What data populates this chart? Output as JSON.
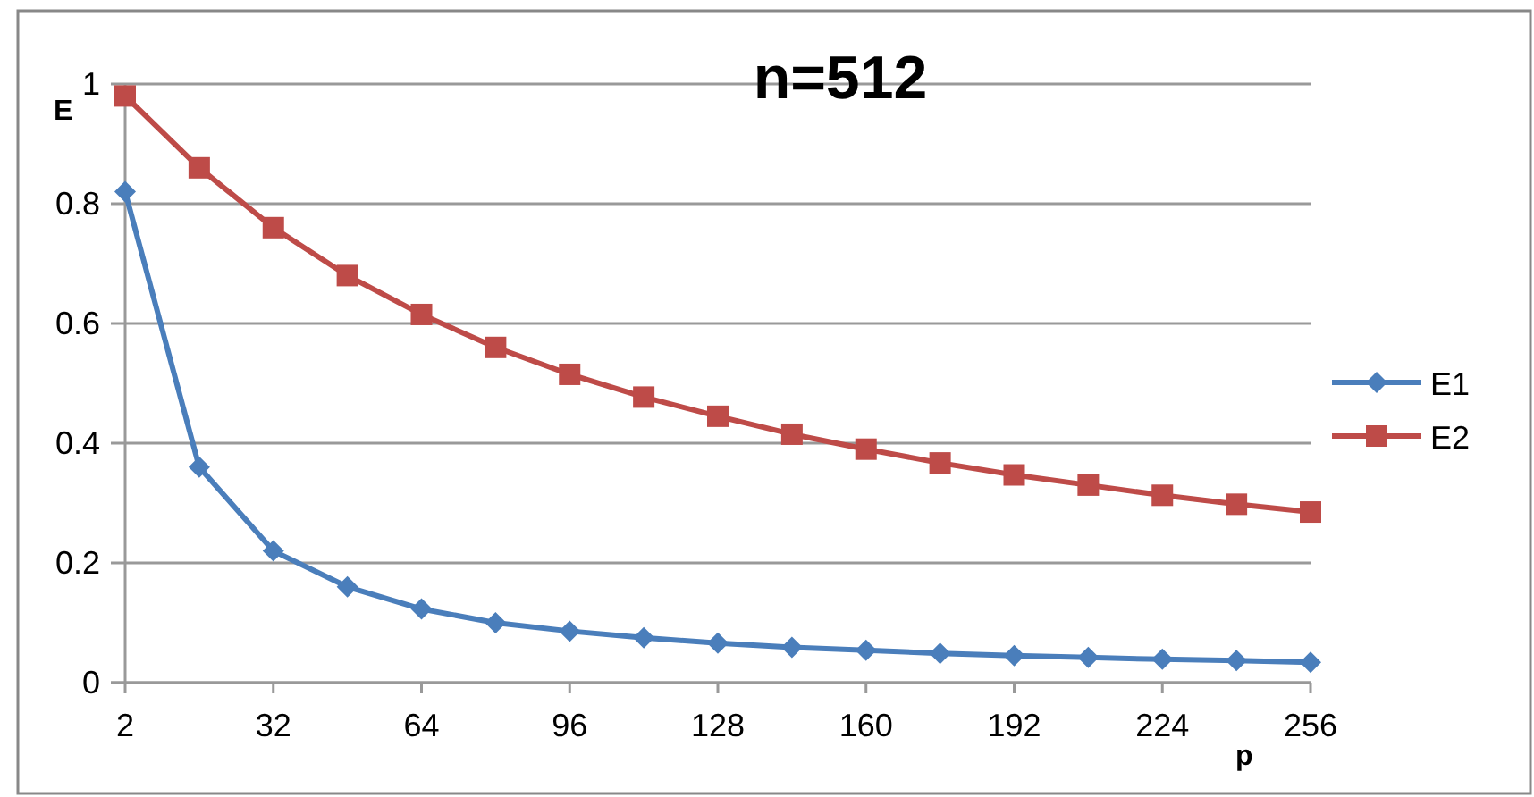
{
  "chart_data": {
    "type": "line",
    "title": "n=512",
    "xlabel": "p",
    "ylabel": "E",
    "categories": [
      "2",
      null,
      "32",
      null,
      "64",
      null,
      "96",
      null,
      "128",
      null,
      "160",
      null,
      "192",
      null,
      "224",
      null,
      "256"
    ],
    "series": [
      {
        "name": "E1",
        "color": "#4a7ebb",
        "values": [
          0.82,
          0.36,
          0.22,
          0.16,
          0.123,
          0.1,
          0.086,
          0.075,
          0.066,
          0.059,
          0.054,
          0.049,
          0.045,
          0.042,
          0.039,
          0.037,
          0.034
        ],
        "marker": "diamond"
      },
      {
        "name": "E2",
        "color": "#be4b48",
        "values": [
          0.98,
          0.86,
          0.76,
          0.68,
          0.615,
          0.56,
          0.515,
          0.477,
          0.445,
          0.415,
          0.39,
          0.367,
          0.347,
          0.33,
          0.313,
          0.298,
          0.285
        ],
        "marker": "square"
      }
    ],
    "ylim": [
      0,
      1
    ],
    "yticks": [
      0,
      0.2,
      0.4,
      0.6,
      0.8,
      1
    ],
    "grid": "y",
    "legend": "right",
    "line_style": "solid"
  }
}
